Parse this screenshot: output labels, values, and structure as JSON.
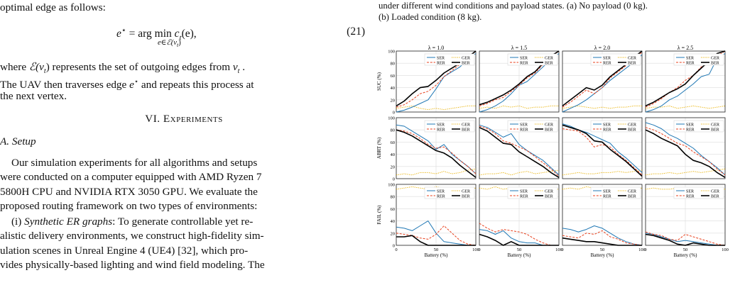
{
  "left": {
    "p1a": "optimal edge as follows:",
    "eq21": {
      "lhs": "e",
      "sup": "⋆",
      "mid": " = arg min ",
      "under": "e∈ℰ(v",
      "under_t": "t",
      "rhs": "c",
      "rhs_t": "t",
      "rhs_tail": "(e),",
      "number": "(21)"
    },
    "p2_l1_a": "where ",
    "p2_l1_sym": "ℰ(v",
    "p2_l1_sub": "t",
    "p2_l1_b": ") represents the set of outgoing edges from ",
    "p2_l1_v": "v",
    "p2_l1_v_sub": "t",
    "p2_l1_c": " .",
    "p2_l2_a": "The UAV then traverses edge ",
    "p2_l2_e": "e",
    "p2_l2_sup": "⋆",
    "p2_l2_b": " and repeats this process at",
    "p2_l3": "the next vertex.",
    "section": "VI. Experiments",
    "subsection": "A. Setup",
    "p3_l1": "Our simulation experiments for all algorithms and setups",
    "p3_l2": "were conducted on a computer equipped with AMD Ryzen 7",
    "p3_l3": "5800H CPU and NVIDIA RTX 3050 GPU. We evaluate the",
    "p3_l4": "proposed routing framework on two types of environments:",
    "p4_l1_a": "(i) ",
    "p4_l1_i": "Synthetic ER graphs",
    "p4_l1_b": ": To generate controllable yet re-",
    "p4_l2": "alistic delivery environments, we construct high-fidelity sim-",
    "p4_l3": "ulation scenes in Unreal Engine 4 (UE4) [32], which pro-",
    "p4_l4": "vides physically-based lighting and wind field modeling. The"
  },
  "right": {
    "caption_l1": "under different wind conditions and payload states. (a) No payload (0 kg).",
    "caption_l2": "(b) Loaded condition (8 kg)."
  },
  "chart_data": {
    "type": "line",
    "columns": [
      "λ = 1.0",
      "λ = 1.5",
      "λ = 2.0",
      "λ = 2.5"
    ],
    "row_ylabels": [
      "SUC (%)",
      "ABRT (%)",
      "FAIL (%)"
    ],
    "xlabel": "Battery (%)",
    "xlim": [
      0,
      100
    ],
    "ylim": [
      0,
      100
    ],
    "xticks": [
      0,
      50,
      100
    ],
    "yticks": [
      0,
      20,
      40,
      60,
      80,
      100
    ],
    "grid": true,
    "legend_placement": "top-right",
    "legend": [
      "SER",
      "GER",
      "RER",
      "BER"
    ],
    "series_styles": {
      "SER": "#1f77b4",
      "GER": "#e8b000",
      "RER": "#e8411e",
      "BER": "#000000"
    },
    "x": [
      0,
      10,
      20,
      30,
      40,
      50,
      60,
      70,
      80,
      90,
      100
    ],
    "panels": [
      {
        "row": "SUC (%)",
        "col": "λ = 1.0",
        "series": [
          {
            "name": "SER",
            "values": [
              0,
              3,
              8,
              14,
              20,
              38,
              58,
              66,
              74,
              86,
              96
            ]
          },
          {
            "name": "GER",
            "values": [
              6,
              8,
              10,
              6,
              4,
              6,
              4,
              6,
              8,
              10,
              10
            ]
          },
          {
            "name": "RER",
            "values": [
              8,
              12,
              20,
              30,
              34,
              44,
              58,
              68,
              78,
              88,
              100
            ]
          },
          {
            "name": "BER",
            "values": [
              10,
              18,
              30,
              40,
              42,
              52,
              64,
              72,
              80,
              90,
              100
            ]
          }
        ]
      },
      {
        "row": "SUC (%)",
        "col": "λ = 1.5",
        "series": [
          {
            "name": "SER",
            "values": [
              0,
              4,
              10,
              18,
              30,
              44,
              50,
              62,
              74,
              86,
              96
            ]
          },
          {
            "name": "GER",
            "values": [
              6,
              8,
              6,
              10,
              8,
              10,
              6,
              8,
              8,
              10,
              10
            ]
          },
          {
            "name": "RER",
            "values": [
              10,
              14,
              20,
              24,
              34,
              44,
              56,
              64,
              78,
              90,
              100
            ]
          },
          {
            "name": "BER",
            "values": [
              12,
              16,
              22,
              28,
              36,
              46,
              58,
              66,
              80,
              92,
              100
            ]
          }
        ]
      },
      {
        "row": "SUC (%)",
        "col": "λ = 2.0",
        "series": [
          {
            "name": "SER",
            "values": [
              0,
              6,
              12,
              20,
              30,
              40,
              52,
              62,
              72,
              82,
              94
            ]
          },
          {
            "name": "GER",
            "values": [
              6,
              8,
              10,
              8,
              6,
              8,
              6,
              8,
              8,
              10,
              10
            ]
          },
          {
            "name": "RER",
            "values": [
              8,
              16,
              26,
              36,
              30,
              40,
              56,
              66,
              76,
              88,
              98
            ]
          },
          {
            "name": "BER",
            "values": [
              10,
              20,
              30,
              40,
              36,
              44,
              58,
              68,
              78,
              90,
              100
            ]
          }
        ]
      },
      {
        "row": "SUC (%)",
        "col": "λ = 2.5",
        "series": [
          {
            "name": "SER",
            "values": [
              0,
              4,
              10,
              20,
              26,
              36,
              46,
              58,
              62,
              88,
              96
            ]
          },
          {
            "name": "GER",
            "values": [
              6,
              8,
              8,
              10,
              6,
              8,
              10,
              8,
              6,
              8,
              10
            ]
          },
          {
            "name": "RER",
            "values": [
              8,
              14,
              22,
              32,
              40,
              52,
              60,
              74,
              80,
              92,
              100
            ]
          },
          {
            "name": "BER",
            "values": [
              10,
              16,
              24,
              32,
              38,
              46,
              60,
              72,
              84,
              96,
              100
            ]
          }
        ]
      },
      {
        "row": "ABRT (%)",
        "col": "λ = 1.0",
        "series": [
          {
            "name": "SER",
            "values": [
              88,
              86,
              78,
              70,
              62,
              48,
              56,
              40,
              30,
              20,
              8
            ]
          },
          {
            "name": "GER",
            "values": [
              6,
              8,
              6,
              10,
              10,
              8,
              12,
              8,
              10,
              14,
              16
            ]
          },
          {
            "name": "RER",
            "values": [
              80,
              78,
              74,
              66,
              56,
              50,
              52,
              42,
              30,
              20,
              8
            ]
          },
          {
            "name": "BER",
            "values": [
              80,
              76,
              70,
              62,
              54,
              46,
              42,
              34,
              22,
              12,
              2
            ]
          }
        ]
      },
      {
        "row": "ABRT (%)",
        "col": "λ = 1.5",
        "series": [
          {
            "name": "SER",
            "values": [
              88,
              84,
              76,
              68,
              74,
              56,
              46,
              38,
              30,
              18,
              6
            ]
          },
          {
            "name": "GER",
            "values": [
              6,
              8,
              8,
              10,
              6,
              10,
              12,
              8,
              10,
              12,
              14
            ]
          },
          {
            "name": "RER",
            "values": [
              86,
              82,
              74,
              62,
              58,
              52,
              46,
              36,
              26,
              16,
              4
            ]
          },
          {
            "name": "BER",
            "values": [
              84,
              78,
              68,
              58,
              56,
              44,
              36,
              28,
              20,
              10,
              2
            ]
          }
        ]
      },
      {
        "row": "ABRT (%)",
        "col": "λ = 2.0",
        "series": [
          {
            "name": "SER",
            "values": [
              90,
              86,
              80,
              76,
              70,
              64,
              58,
              44,
              34,
              22,
              10
            ]
          },
          {
            "name": "GER",
            "values": [
              6,
              8,
              10,
              8,
              8,
              10,
              10,
              12,
              10,
              12,
              14
            ]
          },
          {
            "name": "RER",
            "values": [
              82,
              80,
              78,
              68,
              52,
              56,
              52,
              40,
              30,
              18,
              6
            ]
          },
          {
            "name": "BER",
            "values": [
              88,
              84,
              80,
              74,
              62,
              60,
              48,
              38,
              28,
              16,
              4
            ]
          }
        ]
      },
      {
        "row": "ABRT (%)",
        "col": "λ = 2.5",
        "series": [
          {
            "name": "SER",
            "values": [
              92,
              88,
              82,
              72,
              66,
              58,
              50,
              38,
              28,
              18,
              6
            ]
          },
          {
            "name": "GER",
            "values": [
              6,
              8,
              8,
              10,
              8,
              10,
              12,
              10,
              12,
              14,
              16
            ]
          },
          {
            "name": "RER",
            "values": [
              84,
              80,
              74,
              66,
              58,
              54,
              44,
              36,
              28,
              16,
              6
            ]
          },
          {
            "name": "BER",
            "values": [
              80,
              74,
              66,
              60,
              54,
              40,
              30,
              26,
              20,
              10,
              2
            ]
          }
        ]
      },
      {
        "row": "FAIL (%)",
        "col": "λ = 1.0",
        "series": [
          {
            "name": "SER",
            "values": [
              30,
              28,
              24,
              32,
              40,
              20,
              6,
              4,
              2,
              0,
              0
            ]
          },
          {
            "name": "GER",
            "values": [
              92,
              94,
              96,
              94,
              92,
              96,
              94,
              92,
              92,
              92,
              94
            ]
          },
          {
            "name": "RER",
            "values": [
              20,
              18,
              16,
              12,
              10,
              18,
              32,
              20,
              8,
              2,
              0
            ]
          },
          {
            "name": "BER",
            "values": [
              14,
              14,
              16,
              6,
              0,
              0,
              0,
              0,
              0,
              0,
              0
            ]
          }
        ]
      },
      {
        "row": "FAIL (%)",
        "col": "λ = 1.5",
        "series": [
          {
            "name": "SER",
            "values": [
              26,
              24,
              18,
              24,
              12,
              6,
              4,
              4,
              0,
              0,
              0
            ]
          },
          {
            "name": "GER",
            "values": [
              94,
              92,
              96,
              92,
              94,
              92,
              94,
              92,
              94,
              92,
              92
            ]
          },
          {
            "name": "RER",
            "values": [
              36,
              28,
              22,
              26,
              24,
              22,
              18,
              10,
              4,
              0,
              0
            ]
          },
          {
            "name": "BER",
            "values": [
              18,
              14,
              8,
              0,
              6,
              0,
              0,
              0,
              0,
              0,
              0
            ]
          }
        ]
      },
      {
        "row": "FAIL (%)",
        "col": "λ = 2.0",
        "series": [
          {
            "name": "SER",
            "values": [
              28,
              26,
              22,
              26,
              32,
              28,
              20,
              12,
              6,
              2,
              0
            ]
          },
          {
            "name": "GER",
            "values": [
              92,
              94,
              92,
              96,
              94,
              92,
              94,
              94,
              92,
              92,
              94
            ]
          },
          {
            "name": "RER",
            "values": [
              16,
              14,
              12,
              20,
              18,
              24,
              14,
              10,
              4,
              2,
              0
            ]
          },
          {
            "name": "BER",
            "values": [
              12,
              10,
              8,
              6,
              6,
              4,
              2,
              0,
              0,
              0,
              0
            ]
          }
        ]
      },
      {
        "row": "FAIL (%)",
        "col": "λ = 2.5",
        "series": [
          {
            "name": "SER",
            "values": [
              20,
              18,
              14,
              10,
              6,
              8,
              6,
              4,
              2,
              0,
              0
            ]
          },
          {
            "name": "GER",
            "values": [
              92,
              94,
              92,
              92,
              94,
              92,
              94,
              92,
              92,
              94,
              92
            ]
          },
          {
            "name": "RER",
            "values": [
              22,
              18,
              16,
              10,
              8,
              18,
              14,
              10,
              6,
              2,
              0
            ]
          },
          {
            "name": "BER",
            "values": [
              18,
              16,
              12,
              8,
              2,
              0,
              4,
              2,
              0,
              0,
              0
            ]
          }
        ]
      }
    ]
  }
}
